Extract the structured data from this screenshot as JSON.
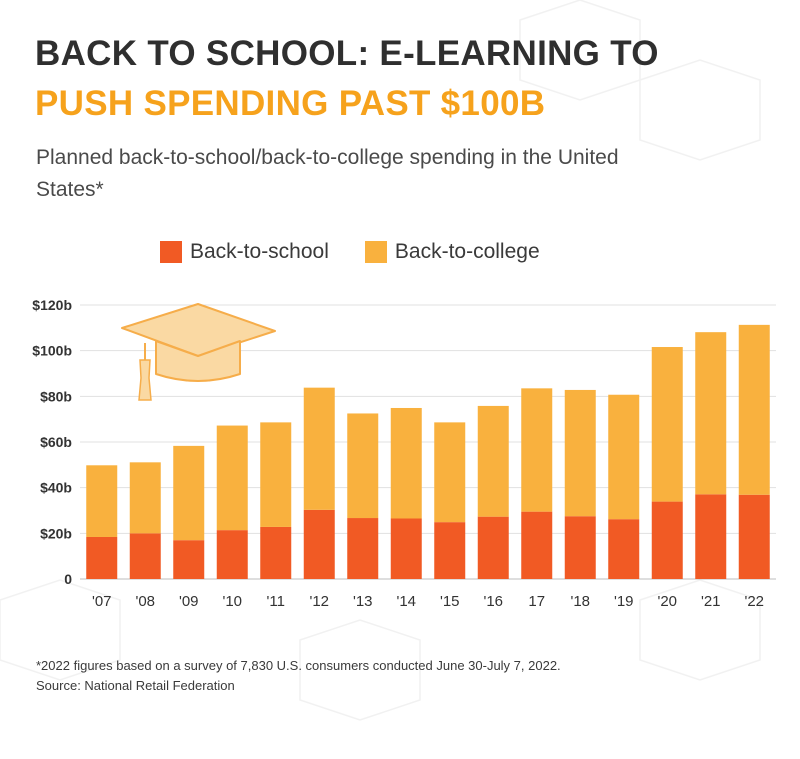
{
  "title": {
    "line1": "BACK TO SCHOOL: E-LEARNING TO",
    "line2": "PUSH SPENDING PAST $100B"
  },
  "subtitle": "Planned back-to-school/back-to-college spending in the United States*",
  "footnote": {
    "line1": "*2022 figures based on a survey of 7,830 U.S. consumers conducted June 30-July 7, 2022.",
    "line2": "Source: National Retail Federation"
  },
  "colors": {
    "back_to_school": "#f15a24",
    "back_to_college": "#f9b13e",
    "title_accent": "#f6a21c",
    "title_dark": "#2f2f2f",
    "grid": "#e1e1e1",
    "cap_fill": "#fad9a3"
  },
  "icons": {
    "decoration": "graduation-cap-icon"
  },
  "chart_data": {
    "type": "bar",
    "stacked": true,
    "categories": [
      "'07",
      "'08",
      "'09",
      "'10",
      "'11",
      "'12",
      "'13",
      "'14",
      "'15",
      "'16",
      "17",
      "'18",
      "'19",
      "'20",
      "'21",
      "'22"
    ],
    "series": [
      {
        "name": "Back-to-school",
        "values": [
          18.4,
          20.0,
          17.0,
          21.4,
          22.8,
          30.3,
          26.7,
          26.5,
          24.9,
          27.3,
          29.5,
          27.5,
          26.2,
          33.9,
          37.1,
          36.9
        ]
      },
      {
        "name": "Back-to-college",
        "values": [
          31.4,
          31.1,
          41.3,
          45.8,
          45.8,
          53.5,
          45.8,
          48.4,
          43.7,
          48.5,
          54.0,
          55.3,
          54.5,
          67.7,
          71.0,
          74.4
        ]
      }
    ],
    "y_ticks": [
      "0",
      "$20b",
      "$40b",
      "$60b",
      "$80b",
      "$100b",
      "$120b"
    ],
    "y_tick_values": [
      0,
      20,
      40,
      60,
      80,
      100,
      120
    ],
    "ylim": [
      0,
      120
    ],
    "grid": true,
    "legend_placement": "top",
    "xlabel": "",
    "ylabel": ""
  }
}
